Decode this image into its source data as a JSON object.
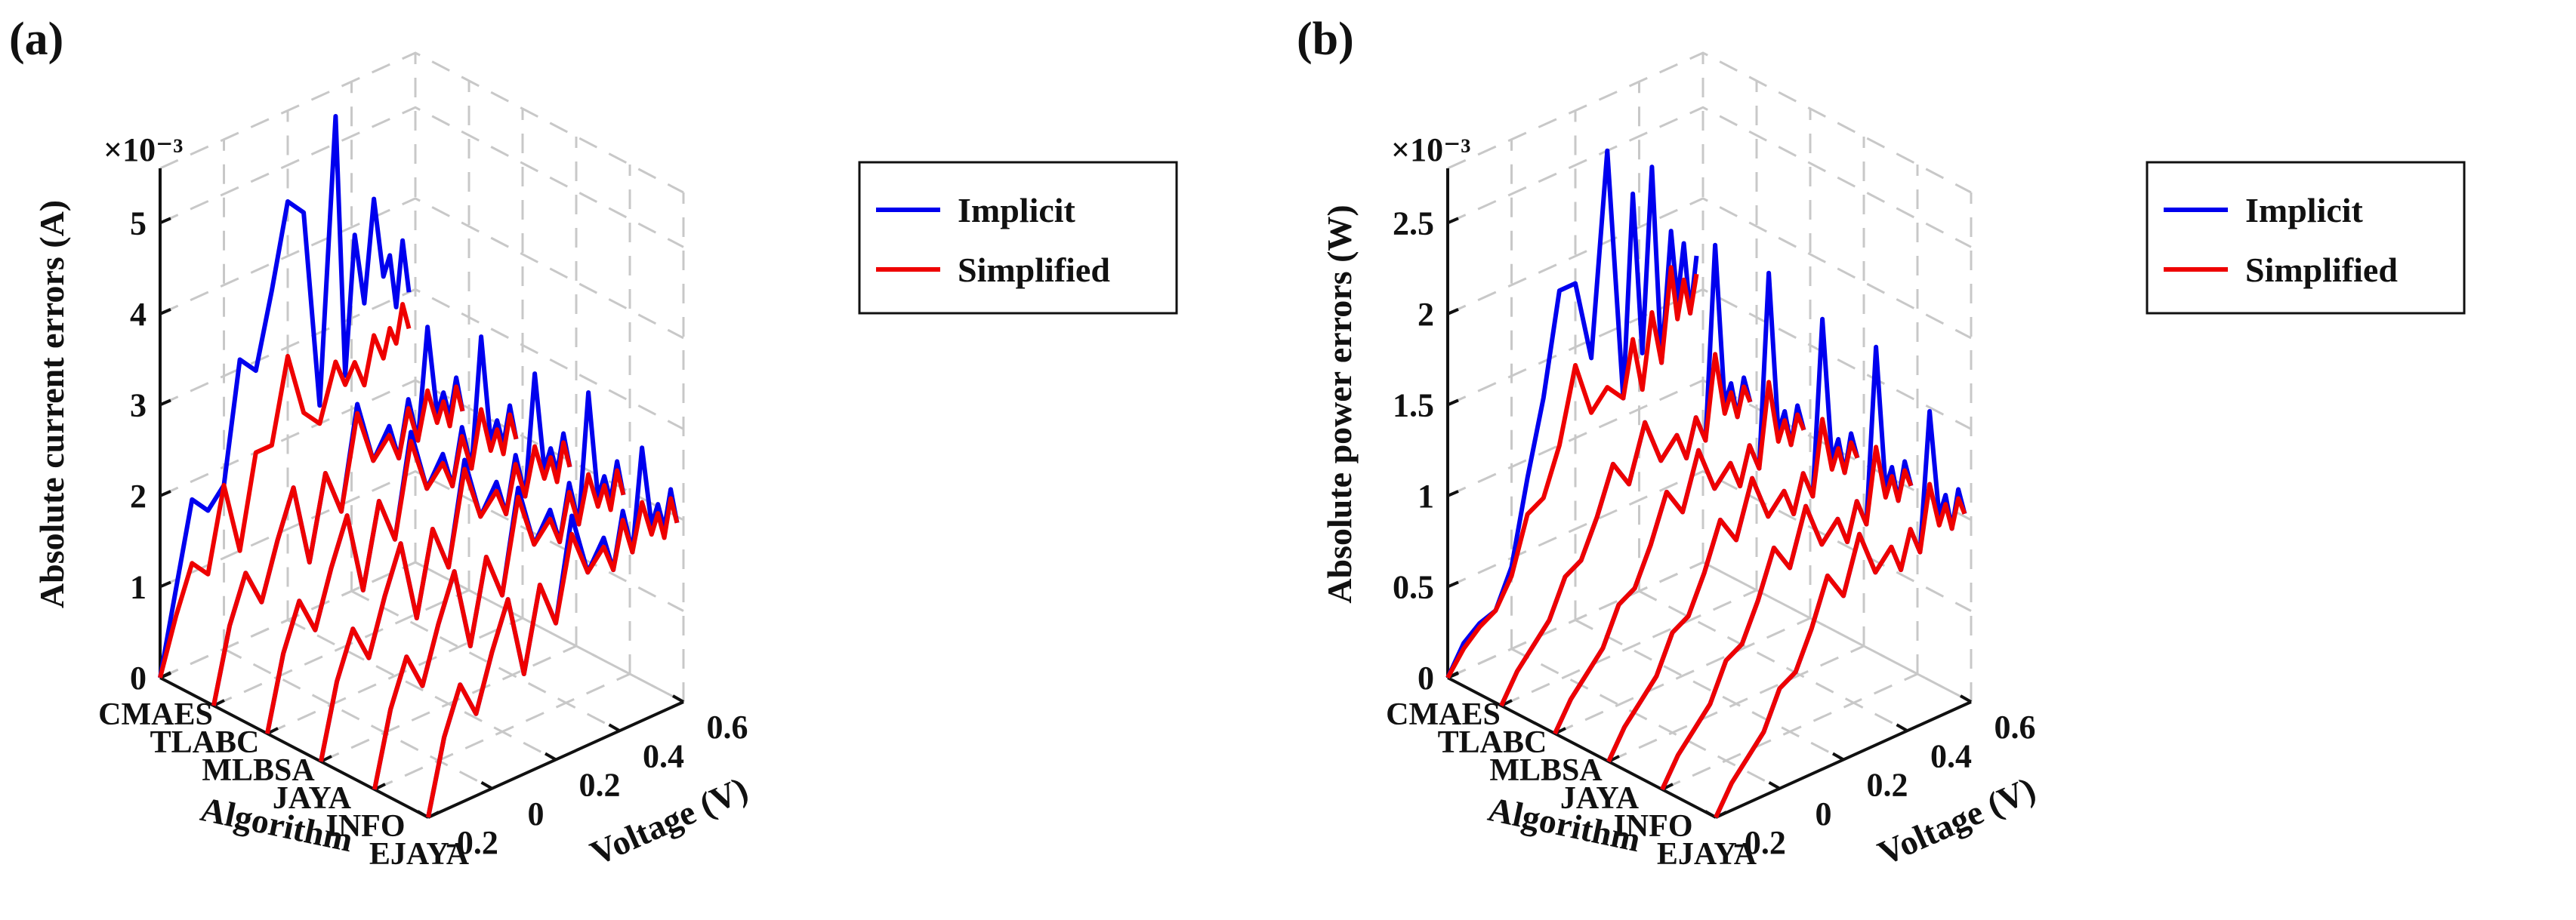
{
  "chart_data": [
    {
      "type": "line",
      "panel": "(a)",
      "title": "",
      "zlabel": "Absolute current errors (A)",
      "exponent": "×10⁻³",
      "xlabel": "Algorithm",
      "ylabel": "Voltage (V)",
      "algorithms": [
        "CMAES",
        "TLABC",
        "MLBSA",
        "JAYA",
        "INFO",
        "EJAYA"
      ],
      "voltage_ticks": [
        "-0.2",
        "0",
        "0.2",
        "0.4",
        "0.6"
      ],
      "z_ticks": [
        "0",
        "1",
        "2",
        "3",
        "4",
        "5"
      ],
      "zlim": [
        0,
        5.6
      ],
      "ylim": [
        -0.2,
        0.6
      ],
      "legend": [
        "Implicit",
        "Simplified"
      ],
      "voltage": [
        -0.2,
        -0.15,
        -0.1,
        -0.05,
        0.0,
        0.05,
        0.1,
        0.15,
        0.2,
        0.25,
        0.3,
        0.35,
        0.38,
        0.41,
        0.44,
        0.47,
        0.5,
        0.52,
        0.54,
        0.56,
        0.58
      ],
      "series": [
        {
          "algorithm": "CMAES",
          "implicit": [
            0.0,
            0.9,
            1.8,
            1.6,
            1.8,
            3.1,
            2.9,
            3.7,
            4.6,
            4.4,
            2.2,
            5.3,
            2.4,
            3.9,
            3.1,
            4.2,
            3.3,
            3.5,
            2.9,
            3.6,
            3.0
          ],
          "simplified": [
            0.0,
            0.6,
            1.1,
            0.9,
            1.8,
            1.0,
            2.0,
            2.0,
            2.9,
            2.2,
            2.0,
            2.6,
            2.3,
            2.5,
            2.2,
            2.7,
            2.4,
            2.7,
            2.5,
            2.9,
            2.6
          ]
        },
        {
          "algorithm": "TLABC",
          "implicit": [
            0.0,
            0.8,
            1.3,
            0.9,
            1.5,
            2.0,
            1.1,
            2.0,
            1.5,
            2.6,
            1.9,
            2.2,
            1.8,
            2.4,
            1.9,
            3.1,
            2.1,
            2.3,
            2.0,
            2.4,
            2.0
          ],
          "simplified": [
            0.0,
            0.8,
            1.3,
            0.9,
            1.5,
            2.0,
            1.1,
            2.0,
            1.5,
            2.5,
            1.9,
            2.1,
            1.8,
            2.3,
            1.9,
            2.4,
            2.0,
            2.2,
            1.9,
            2.3,
            2.0
          ]
        },
        {
          "algorithm": "MLBSA",
          "implicit": [
            0.0,
            0.8,
            1.3,
            0.9,
            1.5,
            2.0,
            1.1,
            2.0,
            1.5,
            2.6,
            1.9,
            2.2,
            1.8,
            2.4,
            1.9,
            3.3,
            2.1,
            2.3,
            2.0,
            2.4,
            2.0
          ],
          "simplified": [
            0.0,
            0.8,
            1.3,
            0.9,
            1.5,
            2.0,
            1.1,
            2.0,
            1.5,
            2.5,
            1.9,
            2.1,
            1.8,
            2.3,
            1.9,
            2.5,
            2.0,
            2.2,
            1.9,
            2.3,
            2.0
          ]
        },
        {
          "algorithm": "JAYA",
          "implicit": [
            0.0,
            0.8,
            1.3,
            0.9,
            1.5,
            2.0,
            1.1,
            2.0,
            1.5,
            2.6,
            1.9,
            2.2,
            1.8,
            2.4,
            1.9,
            3.2,
            2.1,
            2.3,
            2.0,
            2.4,
            2.0
          ],
          "simplified": [
            0.0,
            0.8,
            1.3,
            0.9,
            1.5,
            2.0,
            1.1,
            2.0,
            1.5,
            2.5,
            1.9,
            2.1,
            1.8,
            2.3,
            1.9,
            2.4,
            2.0,
            2.2,
            1.9,
            2.3,
            2.0
          ]
        },
        {
          "algorithm": "INFO",
          "implicit": [
            0.0,
            0.8,
            1.3,
            0.9,
            1.5,
            2.0,
            1.1,
            2.0,
            1.5,
            2.6,
            1.9,
            2.2,
            1.8,
            2.4,
            1.9,
            3.3,
            2.1,
            2.3,
            2.0,
            2.4,
            2.0
          ],
          "simplified": [
            0.0,
            0.8,
            1.3,
            0.9,
            1.5,
            2.0,
            1.1,
            2.0,
            1.5,
            2.5,
            1.9,
            2.1,
            1.8,
            2.3,
            1.9,
            2.4,
            2.0,
            2.2,
            1.9,
            2.3,
            2.0
          ]
        },
        {
          "algorithm": "EJAYA",
          "implicit": [
            0.0,
            0.8,
            1.3,
            0.9,
            1.5,
            2.0,
            1.1,
            2.0,
            1.5,
            2.6,
            1.9,
            2.2,
            1.8,
            2.4,
            1.9,
            3.0,
            2.1,
            2.3,
            2.0,
            2.4,
            2.0
          ],
          "simplified": [
            0.0,
            0.8,
            1.3,
            0.9,
            1.5,
            2.0,
            1.1,
            2.0,
            1.5,
            2.4,
            1.9,
            2.1,
            1.8,
            2.3,
            1.9,
            2.4,
            2.0,
            2.2,
            1.9,
            2.3,
            2.0
          ]
        }
      ]
    },
    {
      "type": "line",
      "panel": "(b)",
      "title": "",
      "zlabel": "Absolute power errors (W)",
      "exponent": "×10⁻³",
      "xlabel": "Algorithm",
      "ylabel": "Voltage (V)",
      "algorithms": [
        "CMAES",
        "TLABC",
        "MLBSA",
        "JAYA",
        "INFO",
        "EJAYA"
      ],
      "voltage_ticks": [
        "-0.2",
        "0",
        "0.2",
        "0.4",
        "0.6"
      ],
      "z_ticks": [
        "0",
        "0.5",
        "1",
        "1.5",
        "2",
        "2.5"
      ],
      "zlim": [
        0,
        2.8
      ],
      "ylim": [
        -0.2,
        0.6
      ],
      "legend": [
        "Implicit",
        "Simplified"
      ],
      "voltage": [
        -0.2,
        -0.15,
        -0.1,
        -0.05,
        0.0,
        0.05,
        0.1,
        0.15,
        0.2,
        0.25,
        0.3,
        0.35,
        0.38,
        0.41,
        0.44,
        0.47,
        0.5,
        0.52,
        0.54,
        0.56,
        0.58
      ],
      "series": [
        {
          "algorithm": "CMAES",
          "implicit": [
            0.0,
            0.15,
            0.22,
            0.25,
            0.45,
            0.9,
            1.3,
            1.85,
            1.85,
            1.4,
            2.5,
            1.1,
            2.2,
            1.3,
            2.3,
            1.2,
            1.9,
            1.5,
            1.8,
            1.4,
            1.7
          ],
          "simplified": [
            0.0,
            0.12,
            0.2,
            0.25,
            0.4,
            0.7,
            0.75,
            1.0,
            1.4,
            1.1,
            1.2,
            1.1,
            1.4,
            1.1,
            1.5,
            1.2,
            1.7,
            1.4,
            1.6,
            1.4,
            1.6
          ]
        },
        {
          "algorithm": "TLABC",
          "implicit": [
            0.0,
            0.15,
            0.25,
            0.35,
            0.55,
            0.6,
            0.8,
            1.05,
            0.9,
            1.2,
            0.95,
            1.05,
            0.9,
            1.1,
            0.95,
            2.0,
            1.1,
            1.2,
            1.0,
            1.2,
            1.05
          ],
          "simplified": [
            0.0,
            0.15,
            0.25,
            0.35,
            0.55,
            0.6,
            0.8,
            1.05,
            0.9,
            1.2,
            0.95,
            1.05,
            0.9,
            1.1,
            0.95,
            1.4,
            1.05,
            1.15,
            1.0,
            1.15,
            1.05
          ]
        },
        {
          "algorithm": "MLBSA",
          "implicit": [
            0.0,
            0.15,
            0.25,
            0.35,
            0.55,
            0.6,
            0.8,
            1.05,
            0.9,
            1.2,
            0.95,
            1.05,
            0.9,
            1.1,
            0.95,
            2.0,
            1.1,
            1.2,
            1.0,
            1.2,
            1.05
          ],
          "simplified": [
            0.0,
            0.15,
            0.25,
            0.35,
            0.55,
            0.6,
            0.8,
            1.05,
            0.9,
            1.2,
            0.95,
            1.05,
            0.9,
            1.1,
            0.95,
            1.4,
            1.05,
            1.15,
            1.0,
            1.15,
            1.05
          ]
        },
        {
          "algorithm": "JAYA",
          "implicit": [
            0.0,
            0.15,
            0.25,
            0.35,
            0.55,
            0.6,
            0.8,
            1.05,
            0.9,
            1.2,
            0.95,
            1.05,
            0.9,
            1.1,
            0.95,
            1.9,
            1.1,
            1.2,
            1.0,
            1.2,
            1.05
          ],
          "simplified": [
            0.0,
            0.15,
            0.25,
            0.35,
            0.55,
            0.6,
            0.8,
            1.05,
            0.9,
            1.2,
            0.95,
            1.05,
            0.9,
            1.1,
            0.95,
            1.35,
            1.05,
            1.15,
            1.0,
            1.15,
            1.05
          ]
        },
        {
          "algorithm": "INFO",
          "implicit": [
            0.0,
            0.15,
            0.25,
            0.35,
            0.55,
            0.6,
            0.8,
            1.05,
            0.9,
            1.2,
            0.95,
            1.05,
            0.9,
            1.1,
            0.95,
            1.9,
            1.1,
            1.2,
            1.0,
            1.2,
            1.05
          ],
          "simplified": [
            0.0,
            0.15,
            0.25,
            0.35,
            0.55,
            0.6,
            0.8,
            1.05,
            0.9,
            1.2,
            0.95,
            1.05,
            0.9,
            1.1,
            0.95,
            1.35,
            1.05,
            1.15,
            1.0,
            1.15,
            1.05
          ]
        },
        {
          "algorithm": "EJAYA",
          "implicit": [
            0.0,
            0.15,
            0.25,
            0.35,
            0.55,
            0.6,
            0.8,
            1.05,
            0.9,
            1.2,
            0.95,
            1.05,
            0.9,
            1.1,
            0.95,
            1.7,
            1.1,
            1.2,
            1.0,
            1.2,
            1.05
          ],
          "simplified": [
            0.0,
            0.15,
            0.25,
            0.35,
            0.55,
            0.6,
            0.8,
            1.05,
            0.9,
            1.2,
            0.95,
            1.05,
            0.9,
            1.1,
            0.95,
            1.3,
            1.05,
            1.15,
            1.0,
            1.15,
            1.05
          ]
        }
      ]
    }
  ]
}
